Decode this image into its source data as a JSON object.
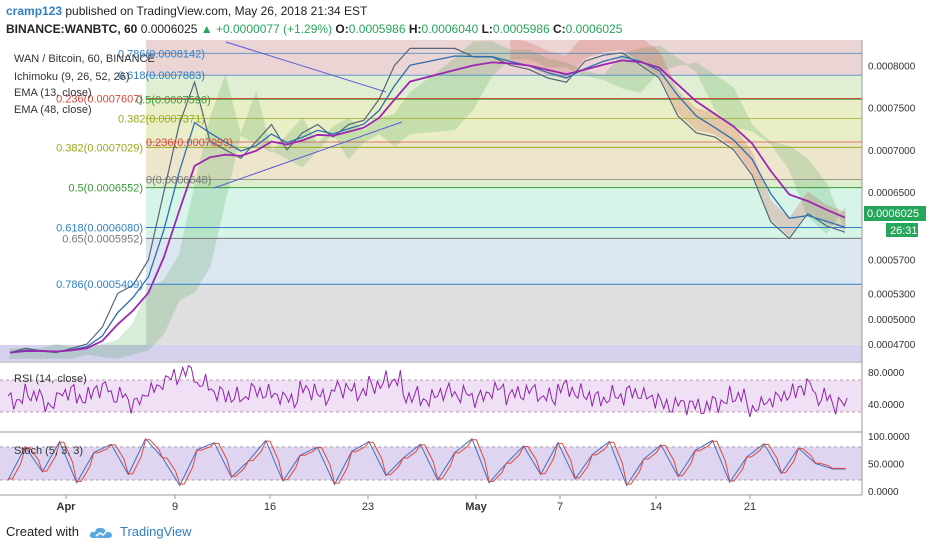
{
  "header": {
    "user": "cramp123",
    "published_text": " published on TradingView.com, May 26, 2018 21:34 EST",
    "symbol": "BINANCE:WANBTC, 60",
    "last": "0.0006025",
    "change": "▲ +0.0000077 (+1.29%)",
    "o_label": "O:",
    "o_value": "0.0005986",
    "h_label": "H:",
    "h_value": "0.0006040",
    "l_label": "L:",
    "l_value": "0.0005986",
    "c_label": "C:",
    "c_value": "0.0006025"
  },
  "legend": {
    "main": "WAN / Bitcoin, 60, BINANCE",
    "ichimoku": "Ichimoku (9, 26, 52, 26)",
    "ema13": "EMA (13, close)",
    "ema48": "EMA (48, close)",
    "rsi": "RSI (14, close)",
    "stoch": "Stoch (5, 3, 3)"
  },
  "price_badge": {
    "value": "0.0006025",
    "countdown": "26:31"
  },
  "footer": {
    "created_with": "Created with",
    "brand": "TradingView"
  },
  "colors": {
    "up": "#26a65b",
    "down": "#e0483c",
    "ema13": "#2f6fb0",
    "ema48": "#9c27b0",
    "rsi": "#8e24aa",
    "stoch_k": "#3f6fc8",
    "stoch_d": "#e0483c",
    "trendline": "#5a5ad8",
    "cloud_green": "#2e9b3a",
    "cloud_red": "#d24b3d",
    "candle_gray": "#556677",
    "fib_bottom_band": "#c9c7e8",
    "fib_lower_zone": "#dcdcdc",
    "fib_mid_zone": "#d8e3ee",
    "fib_upper_zone": "#d3f3e6",
    "fib_top_band": "#e5c9c9"
  },
  "chart_data": [
    {
      "type": "line",
      "title": "WAN / Bitcoin, 60, BINANCE",
      "x_ticks": [
        "Apr",
        "9",
        "16",
        "23",
        "May",
        "7",
        "14",
        "21"
      ],
      "y_ticks": [
        "0.0008000",
        "0.0007500",
        "0.0007000",
        "0.0006500",
        "0.0006025",
        "0.0005700",
        "0.0005300",
        "0.0005000",
        "0.0004700"
      ],
      "ylim": [
        0.00045,
        0.00083
      ],
      "series": [
        {
          "name": "WAN / Bitcoin",
          "x": [
            "Mar 28",
            "Mar 30",
            "Apr 1",
            "Apr 3",
            "Apr 5",
            "Apr 6",
            "Apr 7",
            "Apr 8",
            "Apr 9",
            "Apr 10",
            "Apr 11",
            "Apr 12",
            "Apr 13",
            "Apr 14",
            "Apr 15",
            "Apr 16",
            "Apr 17",
            "Apr 18",
            "Apr 19",
            "Apr 20",
            "Apr 21",
            "Apr 22",
            "Apr 23",
            "Apr 24",
            "Apr 25",
            "Apr 26",
            "Apr 27",
            "May 5",
            "May 6",
            "May 7",
            "May 8",
            "May 9",
            "May 10",
            "May 11",
            "May 12",
            "May 13",
            "May 14",
            "May 15",
            "May 16",
            "May 17",
            "May 18",
            "May 19",
            "May 20",
            "May 21",
            "May 22",
            "May 23",
            "May 24",
            "May 25",
            "May 26"
          ],
          "values": [
            0.00046,
            0.000465,
            0.000462,
            0.00046,
            0.000465,
            0.00047,
            0.00049,
            0.00053,
            0.00054,
            0.00057,
            0.00065,
            0.00073,
            0.00078,
            0.00071,
            0.0007,
            0.00069,
            0.00071,
            0.00073,
            0.0007,
            0.00072,
            0.00073,
            0.000715,
            0.00073,
            0.000735,
            0.00076,
            0.0008,
            0.00082,
            0.00082,
            0.00081,
            0.00081,
            0.0008,
            0.000795,
            0.000785,
            0.00078,
            0.000805,
            0.000812,
            0.000815,
            0.0008,
            0.000785,
            0.00074,
            0.00072,
            0.000715,
            0.0007,
            0.00067,
            0.000615,
            0.000595,
            0.000625,
            0.00061,
            0.0006025
          ]
        }
      ]
    },
    {
      "type": "line",
      "title": "RSI (14, close)",
      "y_ticks": [
        "80.0000",
        "40.0000"
      ],
      "ylim": [
        10,
        90
      ],
      "series": [
        {
          "name": "RSI (14, close)",
          "values": [
            45,
            52,
            40,
            55,
            48,
            60,
            50,
            42,
            58,
            72,
            80,
            64,
            52,
            48,
            56,
            52,
            46,
            58,
            50,
            60,
            55,
            64,
            70,
            50,
            46,
            55,
            52,
            48,
            58,
            52,
            56,
            48,
            60,
            52,
            46,
            50,
            54,
            48,
            38,
            40,
            36,
            42,
            50,
            35,
            45,
            52,
            62,
            48,
            40
          ]
        }
      ]
    },
    {
      "type": "line",
      "title": "Stoch (5, 3, 3)",
      "y_ticks": [
        "100.0000",
        "50.0000",
        "0.0000"
      ],
      "ylim": [
        0,
        100
      ],
      "series": [
        {
          "name": "Stoch (5, 3, 3)",
          "values": [
            20,
            80,
            35,
            90,
            15,
            70,
            85,
            30,
            95,
            60,
            10,
            75,
            88,
            25,
            55,
            92,
            18,
            65,
            80,
            12,
            72,
            90,
            28,
            60,
            85,
            20,
            70,
            95,
            15,
            50,
            82,
            30,
            88,
            22,
            66,
            90,
            10,
            58,
            84,
            26,
            74,
            92,
            16,
            62,
            86,
            32,
            78,
            50,
            40
          ]
        }
      ]
    }
  ],
  "fib_left": {
    "levels": [
      {
        "ratio": "0.786",
        "price": "0.0008142",
        "label": "0.786(0.0008142)",
        "color": "#2f80c8"
      },
      {
        "ratio": "0.618",
        "price": "0.0007883",
        "label": "0.618(0.0007883)",
        "color": "#2f80c8"
      },
      {
        "ratio": "0.5",
        "price": "0.0007596",
        "label": "0.5(0.0007596)",
        "color": "#3a9a3a"
      },
      {
        "ratio": "0.382",
        "price": "0.0007371",
        "label": "0.382(0.0007371)",
        "color": "#9aa81c"
      },
      {
        "ratio": "0.236",
        "price": "0.0007093",
        "label": "0.236(0.0007093)",
        "color": "#d24b3d"
      },
      {
        "ratio": "0",
        "price": "0.0006648",
        "label": "0(0.0006648)",
        "color": "#777777"
      }
    ]
  },
  "fib_main": {
    "levels": [
      {
        "ratio": "0.236",
        "price": "0.0007607",
        "label": "0.236(0.0007607)",
        "color": "#d24b3d"
      },
      {
        "ratio": "0.382",
        "price": "0.0007029",
        "label": "0.382(0.0007029)",
        "color": "#9aa81c"
      },
      {
        "ratio": "0.5",
        "price": "0.0006552",
        "label": "0.5(0.0006552)",
        "color": "#3a9a3a"
      },
      {
        "ratio": "0.618",
        "price": "0.0006080",
        "label": "0.618(0.0006080)",
        "color": "#2f80c8"
      },
      {
        "ratio": "0.65",
        "price": "0.0005952",
        "label": "0.65(0.0005952)",
        "color": "#777777"
      },
      {
        "ratio": "0.786",
        "price": "0.0005409",
        "label": "0.786(0.0005409)",
        "color": "#2f80c8"
      }
    ]
  }
}
